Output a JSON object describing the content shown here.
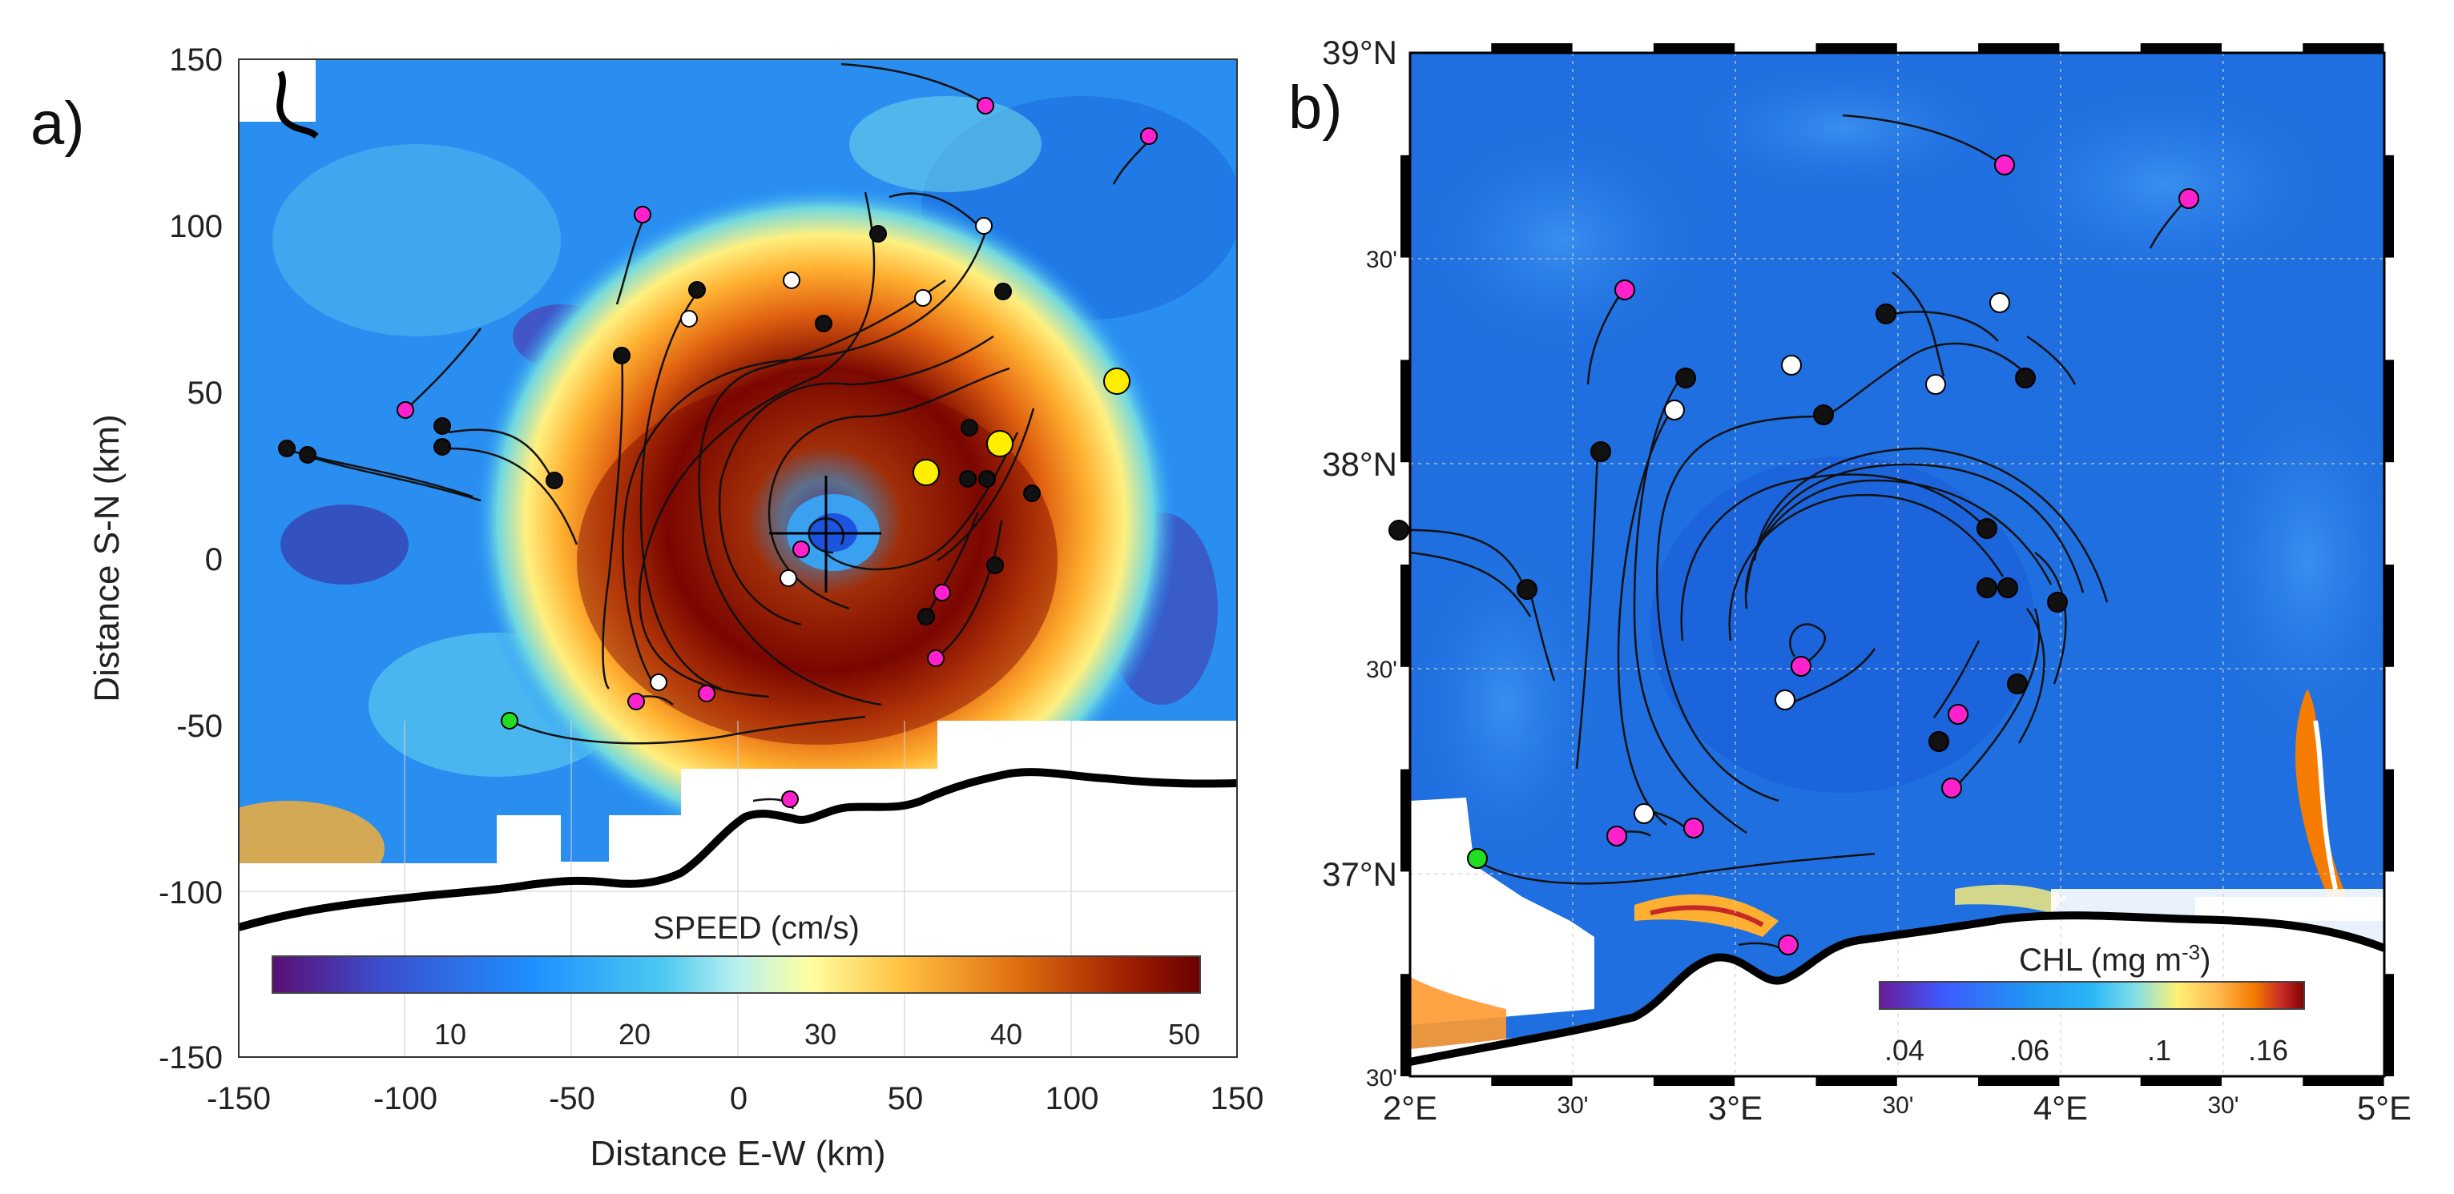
{
  "panels": [
    {
      "id": "a",
      "label": "a)",
      "map_type": "surface current speed field, eddy-centred coordinates",
      "x_axis": {
        "title": "Distance E-W (km)",
        "min": -150,
        "max": 150,
        "ticks": [
          "-150",
          "-100",
          "-50",
          "0",
          "50",
          "100",
          "150"
        ]
      },
      "y_axis": {
        "title": "Distance S-N (km)",
        "min": -150,
        "max": 150,
        "ticks": [
          "150",
          "100",
          "50",
          "0",
          "-50",
          "-100",
          "-150"
        ]
      },
      "colorbar": {
        "title": "SPEED (cm/s)",
        "ticks": [
          "10",
          "20",
          "30",
          "40",
          "50"
        ],
        "colors": [
          "#5b0f73",
          "#3b4fd0",
          "#1e90ff",
          "#4cc8f0",
          "#b8f0f0",
          "#ffffa0",
          "#ffc040",
          "#e07010",
          "#a02000",
          "#6a0000"
        ]
      },
      "center_marker": "eddy-centre-cross",
      "drifter_colors": {
        "black": "#111111",
        "white": "#ffffff",
        "magenta": "#ff22cc",
        "yellow": "#ffee00",
        "green": "#22dd22"
      }
    },
    {
      "id": "b",
      "label": "b)",
      "map_type": "satellite chlorophyll concentration, geographic coordinates",
      "lon_ticks": [
        "2°E",
        "30'",
        "3°E",
        "30'",
        "4°E",
        "30'",
        "5°E"
      ],
      "lat_ticks": [
        "39°N",
        "30'",
        "38°N",
        "30'",
        "37°N",
        "30'"
      ],
      "colorbar": {
        "title": "CHL (mg m",
        "title_sup": "-3",
        "title_end": ")",
        "ticks": [
          ".04",
          ".06",
          ".1",
          ".16"
        ],
        "colors": [
          "#6a1b9a",
          "#3d5afe",
          "#2196f3",
          "#29b6f6",
          "#80deea",
          "#fff176",
          "#ffb74d",
          "#f57c00",
          "#c62828",
          "#7f0000"
        ]
      },
      "background_color": "#1f6fe0"
    }
  ]
}
